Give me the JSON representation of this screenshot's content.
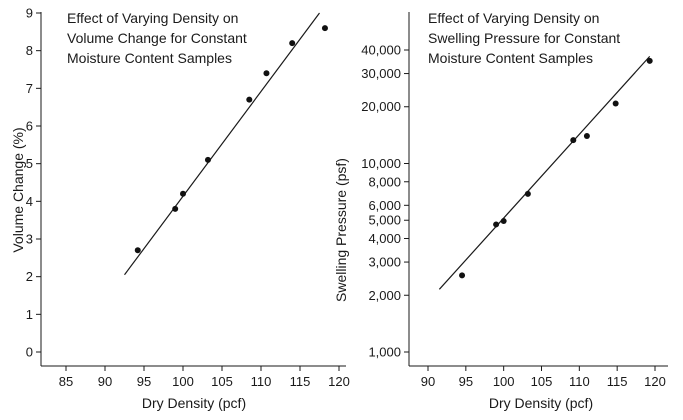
{
  "chart_data": [
    {
      "type": "scatter",
      "title": "Effect of Varying Density on\nVolume Change for Constant\nMoisture Content Samples",
      "xlabel": "Dry Density (pcf)",
      "ylabel": "Volume Change (%)",
      "xlim": [
        85,
        120
      ],
      "ylim": [
        0,
        9
      ],
      "yscale": "linear",
      "xticks": [
        85,
        90,
        95,
        100,
        105,
        110,
        115,
        120
      ],
      "yticks": [
        0,
        1,
        2,
        3,
        4,
        5,
        6,
        7,
        8,
        9
      ],
      "ytick_labels": [
        "0",
        "1",
        "2",
        "3",
        "4",
        "5",
        "6",
        "7",
        "8",
        "9"
      ],
      "grid": false,
      "series": [
        {
          "points": [
            {
              "x": 94.2,
              "y": 2.7
            },
            {
              "x": 99.0,
              "y": 3.8
            },
            {
              "x": 100.0,
              "y": 4.2
            },
            {
              "x": 103.2,
              "y": 5.1
            },
            {
              "x": 108.5,
              "y": 6.7
            },
            {
              "x": 110.7,
              "y": 7.4
            },
            {
              "x": 114.0,
              "y": 8.2
            },
            {
              "x": 118.2,
              "y": 8.6
            }
          ]
        }
      ],
      "fit_line": [
        {
          "x": 92.5,
          "y": 2.05
        },
        {
          "x": 117.5,
          "y": 9.0
        }
      ]
    },
    {
      "type": "scatter",
      "title": "Effect of Varying Density on\nSwelling Pressure for Constant\nMoisture Content Samples",
      "xlabel": "Dry Density (pcf)",
      "ylabel": "Swelling Pressure (psf)",
      "xlim": [
        90,
        120
      ],
      "ylim": [
        1000,
        40000
      ],
      "yscale": "log",
      "xticks": [
        90,
        95,
        100,
        105,
        110,
        115,
        120
      ],
      "yticks": [
        1000,
        2000,
        3000,
        4000,
        5000,
        6000,
        8000,
        10000,
        20000,
        30000,
        40000
      ],
      "ytick_labels": [
        "1,000",
        "2,000",
        "3,000",
        "4,000",
        "5,000",
        "6,000",
        "8,000",
        "10,000",
        "20,000",
        "30,000",
        "40,000"
      ],
      "grid": false,
      "series": [
        {
          "points": [
            {
              "x": 94.5,
              "y": 2550
            },
            {
              "x": 99.0,
              "y": 4750
            },
            {
              "x": 100.0,
              "y": 4950
            },
            {
              "x": 103.2,
              "y": 6900
            },
            {
              "x": 109.2,
              "y": 13300
            },
            {
              "x": 111.0,
              "y": 14000
            },
            {
              "x": 114.8,
              "y": 20800
            },
            {
              "x": 119.3,
              "y": 35000
            }
          ]
        }
      ],
      "fit_line": [
        {
          "x": 91.5,
          "y": 2150
        },
        {
          "x": 119.3,
          "y": 37000
        }
      ]
    }
  ]
}
